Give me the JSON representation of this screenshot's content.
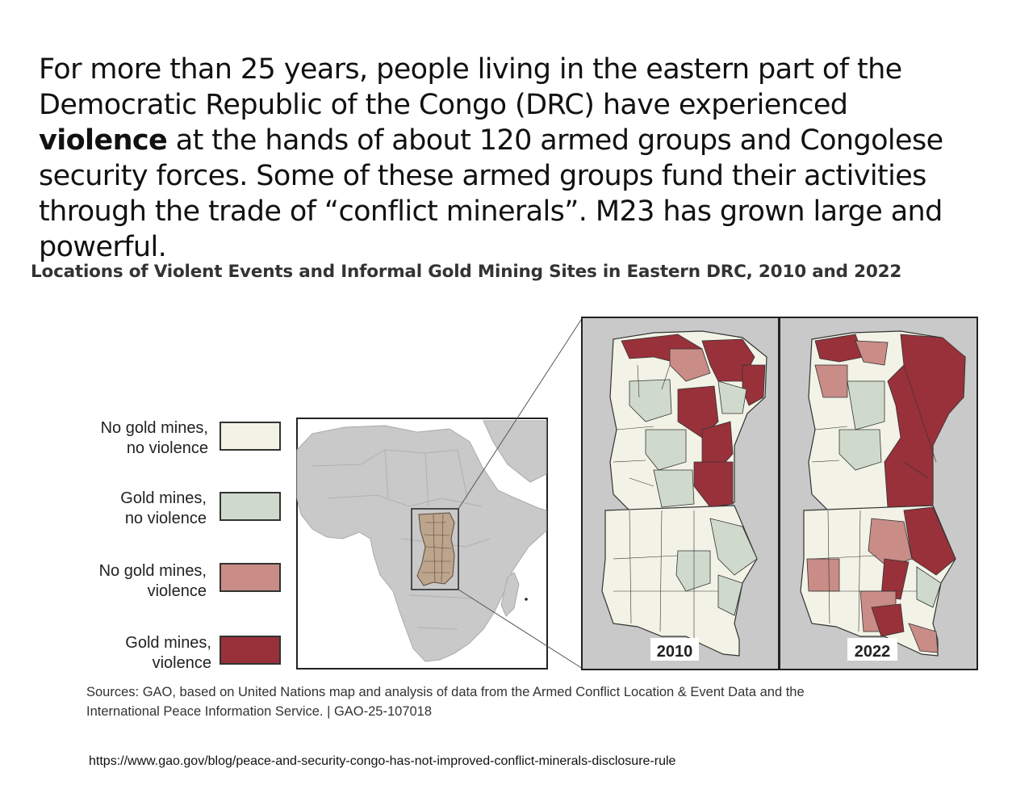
{
  "intro": {
    "part1": "For more than 25 years, people living in the eastern part of the Democratic Republic of the Congo (DRC) have experienced ",
    "bold": "violence",
    "part2": " at the hands of about 120 armed groups and Congolese security forces. Some of these armed groups fund their activities through the trade of “conflict minerals”. M23 has grown large and powerful."
  },
  "figure": {
    "title": "Locations of Violent Events and Informal Gold Mining Sites in Eastern DRC, 2010 and 2022",
    "legend": [
      {
        "line1": "No gold mines,",
        "line2": "no violence",
        "color": "#f2f2e6"
      },
      {
        "line1": "Gold mines,",
        "line2": "no violence",
        "color": "#cfdacd"
      },
      {
        "line1": "No gold mines,",
        "line2": "violence",
        "color": "#c98c86"
      },
      {
        "line1": "Gold mines,",
        "line2": "violence",
        "color": "#98313a"
      }
    ],
    "panels": [
      {
        "year": "2010"
      },
      {
        "year": "2022"
      }
    ],
    "sources_line1": "Sources: GAO, based on United Nations map and analysis of data from the Armed Conflict Location & Event Data and the",
    "sources_line2": "International Peace Information Service.  |  GAO-25-107018"
  },
  "colors": {
    "land_gray": "#c9c9c9",
    "ocean": "#ffffff",
    "border": "#333333"
  },
  "url": "https://www.gao.gov/blog/peace-and-security-congo-has-not-improved-conflict-minerals-disclosure-rule"
}
